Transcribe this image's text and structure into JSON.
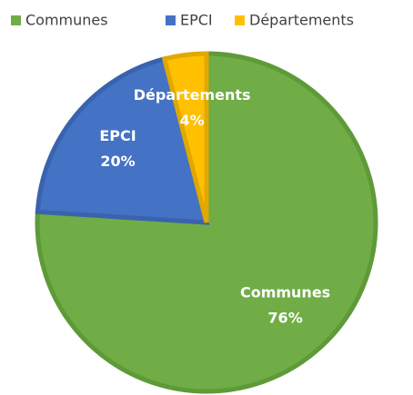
{
  "chart_data": {
    "type": "pie",
    "categories": [
      "Communes",
      "EPCI",
      "Départements"
    ],
    "values": [
      76,
      20,
      4
    ],
    "value_labels": [
      "76%",
      "20%",
      "4%"
    ],
    "colors": [
      "#70ad47",
      "#4472c4",
      "#ffc000"
    ],
    "edge_colors": [
      "#5e9a38",
      "#3a63ae",
      "#e0a800"
    ],
    "legend": "top"
  }
}
